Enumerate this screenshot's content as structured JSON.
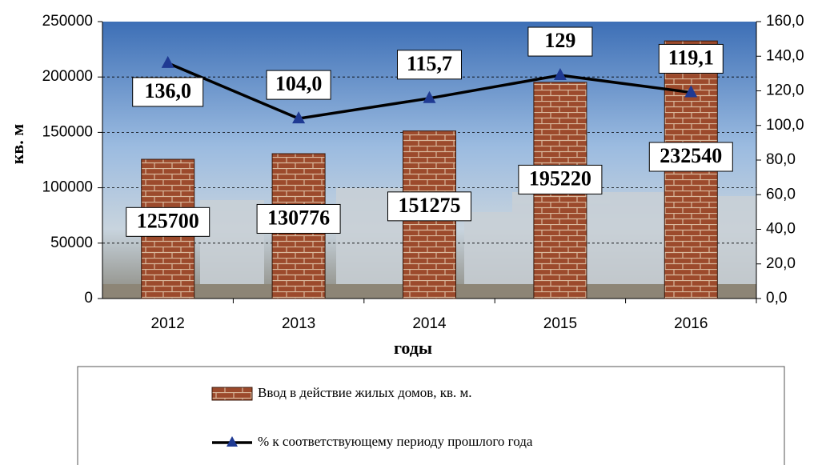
{
  "chart_data": {
    "type": "bar",
    "y_label": "кв. м",
    "x_label": "годы",
    "categories": [
      "2012",
      "2013",
      "2014",
      "2015",
      "2016"
    ],
    "series": [
      {
        "name": "Ввод в действие жилых домов, кв. м.",
        "type": "bar",
        "color": "#9c4a2c",
        "values": [
          125700,
          130776,
          151275,
          195220,
          232540
        ]
      },
      {
        "name": "% к соответствующему периоду прошлого года",
        "type": "line",
        "axis": "y2",
        "color": "#000000",
        "marker_color": "#1f3a93",
        "values": [
          136.0,
          104.0,
          115.7,
          129,
          119.1
        ],
        "value_labels": [
          "136,0",
          "104,0",
          "115,7",
          "129",
          "119,1"
        ]
      }
    ],
    "ylim": [
      0,
      250000
    ],
    "yticks": [
      0,
      50000,
      100000,
      150000,
      200000,
      250000
    ],
    "y2lim": [
      0,
      160
    ],
    "y2ticks": [
      {
        "value": 0,
        "label": "0,0"
      },
      {
        "value": 20,
        "label": "20,0"
      },
      {
        "value": 40,
        "label": "40,0"
      },
      {
        "value": 60,
        "label": "60,0"
      },
      {
        "value": 80,
        "label": "80,0"
      },
      {
        "value": 100,
        "label": "100,0"
      },
      {
        "value": 120,
        "label": "120,0"
      },
      {
        "value": 140,
        "label": "140,0"
      },
      {
        "value": 160,
        "label": "160,0"
      }
    ],
    "grid": true
  }
}
